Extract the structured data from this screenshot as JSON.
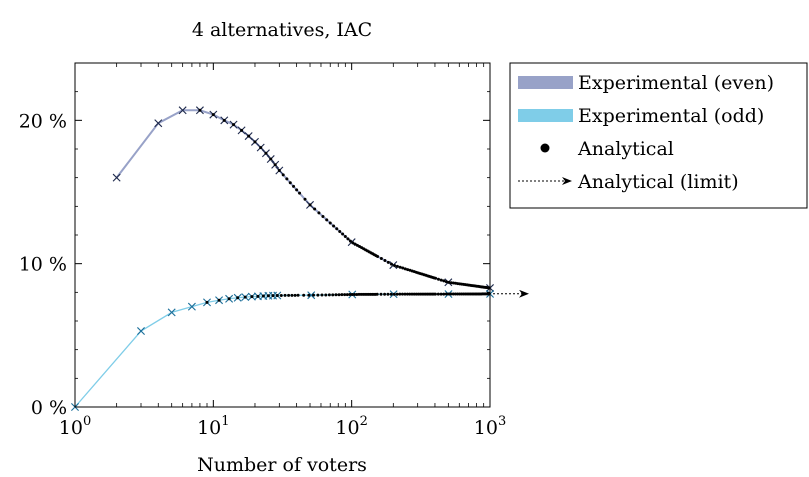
{
  "chart_data": {
    "type": "line",
    "title": "4 alternatives, IAC",
    "xlabel": "Number of voters",
    "ylabel": "",
    "xscale": "log",
    "xlim": [
      1,
      1000
    ],
    "ylim": [
      0,
      24
    ],
    "x_ticks": [
      {
        "value": 1,
        "base": "10",
        "exp": "0"
      },
      {
        "value": 10,
        "base": "10",
        "exp": "1"
      },
      {
        "value": 100,
        "base": "10",
        "exp": "2"
      },
      {
        "value": 1000,
        "base": "10",
        "exp": "3"
      }
    ],
    "y_ticks": [
      {
        "value": 0,
        "label": "0 %"
      },
      {
        "value": 10,
        "label": "10 %"
      },
      {
        "value": 20,
        "label": "20 %"
      }
    ],
    "grid": false,
    "legend_position": "outside-right",
    "legend": [
      {
        "label": "Experimental (even)",
        "symbol": "bar",
        "color": "#98a2c8"
      },
      {
        "label": "Experimental (odd)",
        "symbol": "bar",
        "color": "#7fcde8"
      },
      {
        "label": "Analytical",
        "symbol": "dot",
        "color": "#000000"
      },
      {
        "label": "Analytical (limit)",
        "symbol": "dashed-arrow",
        "color": "#000000"
      }
    ],
    "limit_value": 7.9,
    "series": [
      {
        "name": "Experimental (even)",
        "color": "#98a2c8",
        "x": [
          2,
          4,
          6,
          8,
          10,
          12,
          14,
          16,
          18,
          20,
          22,
          24,
          26,
          28,
          30,
          50,
          100,
          200,
          500,
          1000
        ],
        "values": [
          16.0,
          19.8,
          20.7,
          20.7,
          20.4,
          20.0,
          19.7,
          19.3,
          18.9,
          18.5,
          18.1,
          17.7,
          17.3,
          16.9,
          16.5,
          14.1,
          11.5,
          9.9,
          8.7,
          8.3
        ]
      },
      {
        "name": "Experimental (odd)",
        "color": "#7fcde8",
        "x": [
          1,
          3,
          5,
          7,
          9,
          11,
          13,
          15,
          17,
          19,
          21,
          23,
          25,
          27,
          29,
          51,
          101,
          201,
          501,
          1001
        ],
        "values": [
          0,
          5.3,
          6.6,
          7.0,
          7.3,
          7.45,
          7.55,
          7.62,
          7.67,
          7.7,
          7.72,
          7.74,
          7.76,
          7.77,
          7.78,
          7.8,
          7.85,
          7.87,
          7.88,
          7.89
        ]
      }
    ]
  }
}
